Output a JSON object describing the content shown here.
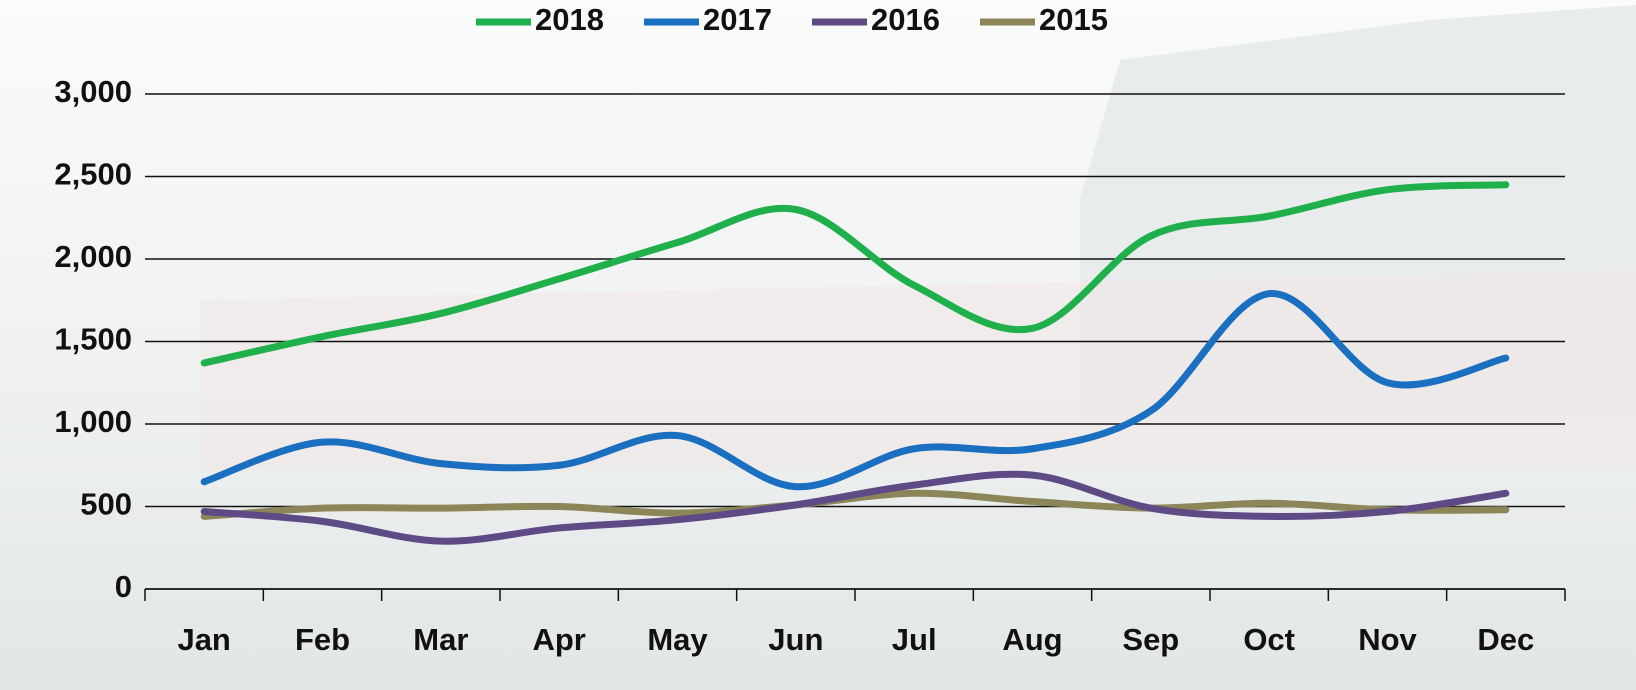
{
  "chart_data": {
    "type": "line",
    "categories": [
      "Jan",
      "Feb",
      "Mar",
      "Apr",
      "May",
      "Jun",
      "Jul",
      "Aug",
      "Sep",
      "Oct",
      "Nov",
      "Dec"
    ],
    "series": [
      {
        "name": "2018",
        "color": "#1fb04b",
        "values": [
          1370,
          1530,
          1670,
          1880,
          2100,
          2300,
          1840,
          1580,
          2140,
          2260,
          2420,
          2450
        ]
      },
      {
        "name": "2017",
        "color": "#1a6fc0",
        "values": [
          650,
          890,
          760,
          750,
          930,
          620,
          850,
          850,
          1080,
          1790,
          1250,
          1400
        ]
      },
      {
        "name": "2016",
        "color": "#5e4a84",
        "values": [
          470,
          410,
          290,
          370,
          420,
          510,
          630,
          690,
          490,
          440,
          470,
          580
        ]
      },
      {
        "name": "2015",
        "color": "#8c8558",
        "values": [
          440,
          490,
          490,
          500,
          460,
          510,
          580,
          530,
          490,
          520,
          480,
          480
        ]
      }
    ],
    "ylim": [
      0,
      3000
    ],
    "yticks": [
      0,
      500,
      {
        "value": 1000,
        "label": "1,000"
      },
      {
        "value": 1500,
        "label": "1,500"
      },
      {
        "value": 2000,
        "label": "2,000"
      },
      {
        "value": 2500,
        "label": "2,500"
      },
      {
        "value": 3000,
        "label": "3,000"
      }
    ],
    "grid": true,
    "legend": "top"
  }
}
